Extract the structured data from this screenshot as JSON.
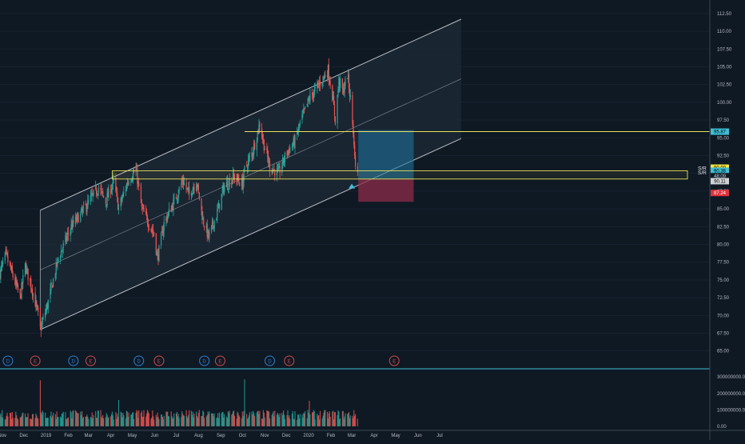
{
  "colors": {
    "background": "#0f1924",
    "up": "#26a69a",
    "down": "#ef5350",
    "channel": "#d7dbe0",
    "sr_line": "#e8e35a",
    "profit_zone": "#1e6f9a",
    "loss_zone": "#8c2b48",
    "dividend_badge": "#2e7fd0",
    "earnings_badge": "#d04a4a"
  },
  "price_axis": {
    "ticks": [
      "112.50",
      "110.00",
      "107.50",
      "105.00",
      "102.50",
      "100.00",
      "97.50",
      "95.00",
      "92.50",
      "90.00",
      "87.50",
      "85.00",
      "82.50",
      "80.00",
      "77.50",
      "75.00",
      "72.50",
      "70.00",
      "67.50",
      "65.00"
    ],
    "tags": [
      {
        "label": "90.00",
        "price": 90.8,
        "color": "#f5e642",
        "text_color": "#000000"
      },
      {
        "label": "89.20",
        "price": 89.2,
        "color": "#f5e642",
        "text_color": "#000000"
      },
      {
        "label": "95.87",
        "price": 95.87,
        "color": "#3fbfd6",
        "text_color": "#000000"
      },
      {
        "label": "90.36",
        "price": 90.36,
        "color": "#3fbfd6",
        "text_color": "#000000"
      },
      {
        "label": "48:09",
        "price": 89.6,
        "color": "#0f1924",
        "text_color": "#d0d4da"
      },
      {
        "label": "90.11",
        "price": 88.9,
        "color": "#cfd3d8",
        "text_color": "#000000"
      },
      {
        "label": "87.24",
        "price": 87.24,
        "color": "#e0313c",
        "text_color": "#ffffff"
      }
    ]
  },
  "volume_axis": {
    "ticks": [
      "300000000.00",
      "200000000.00",
      "100000000.00",
      "0.00"
    ]
  },
  "time_axis": {
    "labels": [
      "Nov",
      "Dec",
      "2019",
      "Feb",
      "Mar",
      "Apr",
      "May",
      "Jun",
      "Jul",
      "Aug",
      "Sep",
      "Oct",
      "Nov",
      "Dec",
      "2020",
      "Feb",
      "Mar",
      "Apr",
      "May",
      "Jun",
      "Jul"
    ]
  },
  "annotations": {
    "sr_labels": [
      "S/R",
      "S/R"
    ],
    "event_badges": [
      {
        "letter": "D",
        "type": "dividend"
      },
      {
        "letter": "E",
        "type": "earnings"
      },
      {
        "letter": "D",
        "type": "dividend"
      },
      {
        "letter": "E",
        "type": "earnings"
      },
      {
        "letter": "D",
        "type": "dividend"
      },
      {
        "letter": "E",
        "type": "earnings"
      },
      {
        "letter": "D",
        "type": "dividend"
      },
      {
        "letter": "E",
        "type": "earnings"
      },
      {
        "letter": "D",
        "type": "dividend"
      },
      {
        "letter": "E",
        "type": "earnings"
      },
      {
        "letter": "E",
        "type": "earnings"
      }
    ]
  },
  "chart_data": {
    "type": "candlestick",
    "x_start": "2018-10-29",
    "price_range": [
      63.5,
      113.5
    ],
    "volume_range": [
      -20000000,
      335000000
    ],
    "sr_levels": [
      95.87,
      90.36,
      89.2
    ],
    "channel": [
      {
        "line": "upper",
        "from": [
          "2018-12-24",
          84.8
        ],
        "to": [
          "2020-07-31",
          111.7
        ]
      },
      {
        "line": "middle",
        "from": [
          "2018-12-24",
          76.4
        ],
        "to": [
          "2020-07-31",
          103.3
        ]
      },
      {
        "line": "lower",
        "from": [
          "2018-12-24",
          68.0
        ],
        "to": [
          "2020-07-31",
          94.9
        ]
      }
    ],
    "position": {
      "entry": 89.2,
      "target": 96.1,
      "stop": 86.0,
      "from": "2020-03-10",
      "to": "2020-05-26"
    },
    "signal": {
      "date": "2020-03-01",
      "price": 88.2,
      "shape": "triangle-up"
    },
    "price_keyframes": [
      [
        "2018-10-29",
        76.0
      ],
      [
        "2018-11-06",
        78.5
      ],
      [
        "2018-11-16",
        75.5
      ],
      [
        "2018-11-26",
        72.5
      ],
      [
        "2018-12-03",
        77.0
      ],
      [
        "2018-12-12",
        74.0
      ],
      [
        "2018-12-20",
        70.5
      ],
      [
        "2018-12-24",
        68.0
      ],
      [
        "2019-01-03",
        71.5
      ],
      [
        "2019-01-18",
        78.0
      ],
      [
        "2019-02-05",
        82.5
      ],
      [
        "2019-02-20",
        84.5
      ],
      [
        "2019-03-05",
        86.5
      ],
      [
        "2019-03-15",
        88.0
      ],
      [
        "2019-03-25",
        86.0
      ],
      [
        "2019-04-05",
        89.0
      ],
      [
        "2019-04-12",
        85.0
      ],
      [
        "2019-04-25",
        89.0
      ],
      [
        "2019-05-06",
        90.5
      ],
      [
        "2019-05-14",
        85.0
      ],
      [
        "2019-05-31",
        81.5
      ],
      [
        "2019-06-05",
        78.0
      ],
      [
        "2019-06-14",
        83.0
      ],
      [
        "2019-06-28",
        86.0
      ],
      [
        "2019-07-10",
        89.0
      ],
      [
        "2019-07-19",
        87.0
      ],
      [
        "2019-07-29",
        89.0
      ],
      [
        "2019-08-07",
        83.5
      ],
      [
        "2019-08-15",
        81.0
      ],
      [
        "2019-08-27",
        84.5
      ],
      [
        "2019-09-05",
        88.0
      ],
      [
        "2019-09-19",
        89.5
      ],
      [
        "2019-10-01",
        88.5
      ],
      [
        "2019-10-04",
        90.5
      ],
      [
        "2019-10-15",
        93.0
      ],
      [
        "2019-10-25",
        97.0
      ],
      [
        "2019-10-31",
        94.0
      ],
      [
        "2019-11-08",
        91.0
      ],
      [
        "2019-11-20",
        90.0
      ],
      [
        "2019-12-02",
        93.0
      ],
      [
        "2019-12-13",
        94.5
      ],
      [
        "2019-12-20",
        97.0
      ],
      [
        "2020-01-02",
        100.5
      ],
      [
        "2020-01-15",
        102.5
      ],
      [
        "2020-01-28",
        104.5
      ],
      [
        "2020-02-03",
        101.0
      ],
      [
        "2020-02-07",
        97.5
      ],
      [
        "2020-02-12",
        103.0
      ],
      [
        "2020-02-18",
        101.5
      ],
      [
        "2020-02-24",
        104.0
      ],
      [
        "2020-02-28",
        100.5
      ]
    ],
    "price_tail": [
      97.0,
      95.5,
      94.0,
      92.5,
      91.0,
      90.11
    ],
    "volume_spikes": [
      [
        "2018-12-24",
        280000000
      ],
      [
        "2019-04-12",
        160000000
      ],
      [
        "2019-10-04",
        285000000
      ],
      [
        "2020-01-02",
        155000000
      ]
    ]
  }
}
